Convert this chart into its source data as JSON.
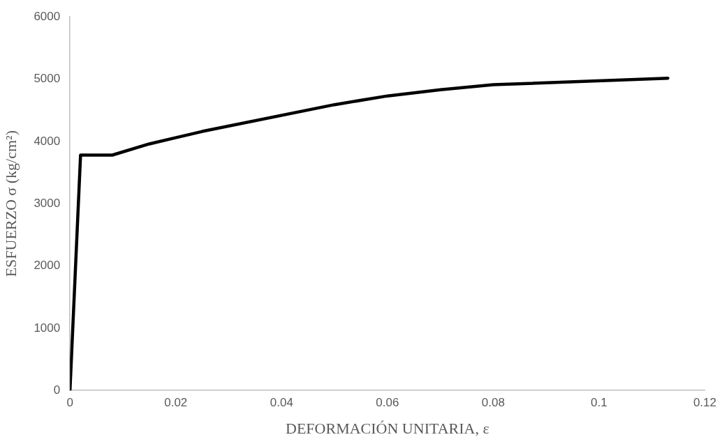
{
  "chart_data": {
    "type": "line",
    "xlabel": "DEFORMACIÓN UNITARIA, ε",
    "ylabel": "ESFUERZO σ (kg/cm²)",
    "series": [
      {
        "color": "#000000",
        "x": [
          0,
          0.002,
          0.008,
          0.015,
          0.025,
          0.05,
          0.06,
          0.07,
          0.08,
          0.113
        ],
        "values": [
          0,
          3780,
          3780,
          3960,
          4160,
          4590,
          4730,
          4830,
          4910,
          5015
        ]
      }
    ],
    "xlim": [
      0,
      0.12
    ],
    "xticks": [
      0,
      0.02,
      0.04,
      0.06,
      0.08,
      0.1,
      0.12
    ],
    "ylim": [
      0,
      6000
    ],
    "yticks": [
      0,
      1000,
      2000,
      3000,
      4000,
      5000,
      6000
    ],
    "grid": false,
    "legend": false,
    "marker": "none",
    "line_style": "solid"
  }
}
